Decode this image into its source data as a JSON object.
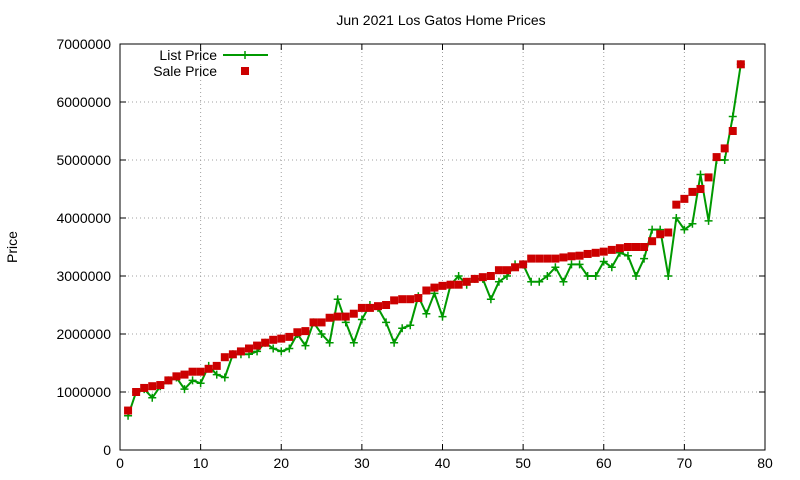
{
  "chart_data": {
    "type": "line",
    "title": "Jun 2021 Los Gatos Home Prices",
    "xlabel": "",
    "ylabel": "Price",
    "xlim": [
      0,
      80
    ],
    "ylim": [
      0,
      7000000
    ],
    "xticks": [
      "0",
      "10",
      "20",
      "30",
      "40",
      "50",
      "60",
      "70",
      "80"
    ],
    "yticks": [
      "0",
      "1000000",
      "2000000",
      "3000000",
      "4000000",
      "5000000",
      "6000000",
      "7000000"
    ],
    "grid": true,
    "legend_position": "top-left",
    "series": [
      {
        "name": "List Price",
        "style": "line-plus",
        "color": "#009900",
        "x": [
          1,
          2,
          3,
          4,
          5,
          6,
          7,
          8,
          9,
          10,
          11,
          12,
          13,
          14,
          15,
          16,
          17,
          18,
          19,
          20,
          21,
          22,
          23,
          24,
          25,
          26,
          27,
          28,
          29,
          30,
          31,
          32,
          33,
          34,
          35,
          36,
          37,
          38,
          39,
          40,
          41,
          42,
          43,
          44,
          45,
          46,
          47,
          48,
          49,
          50,
          51,
          52,
          53,
          54,
          55,
          56,
          57,
          58,
          59,
          60,
          61,
          62,
          63,
          64,
          65,
          66,
          67,
          68,
          69,
          70,
          71,
          72,
          73,
          74,
          75,
          76,
          77
        ],
        "y": [
          590000,
          1000000,
          1050000,
          900000,
          1100000,
          1200000,
          1250000,
          1050000,
          1200000,
          1150000,
          1450000,
          1300000,
          1250000,
          1650000,
          1650000,
          1650000,
          1700000,
          1850000,
          1750000,
          1700000,
          1750000,
          2000000,
          1800000,
          2200000,
          2000000,
          1850000,
          2600000,
          2200000,
          1850000,
          2250000,
          2500000,
          2450000,
          2200000,
          1850000,
          2100000,
          2150000,
          2650000,
          2350000,
          2700000,
          2300000,
          2850000,
          3000000,
          2850000,
          2950000,
          2950000,
          2600000,
          2900000,
          3000000,
          3200000,
          3200000,
          2900000,
          2900000,
          3000000,
          3150000,
          2900000,
          3200000,
          3200000,
          3000000,
          3000000,
          3250000,
          3150000,
          3400000,
          3350000,
          3000000,
          3300000,
          3800000,
          3800000,
          3000000,
          4000000,
          3800000,
          3900000,
          4750000,
          3950000,
          5000000,
          5000000,
          5750000,
          6650000
        ]
      },
      {
        "name": "Sale Price",
        "style": "square",
        "color": "#cc0000",
        "x": [
          1,
          2,
          3,
          4,
          5,
          6,
          7,
          8,
          9,
          10,
          11,
          12,
          13,
          14,
          15,
          16,
          17,
          18,
          19,
          20,
          21,
          22,
          23,
          24,
          25,
          26,
          27,
          28,
          29,
          30,
          31,
          32,
          33,
          34,
          35,
          36,
          37,
          38,
          39,
          40,
          41,
          42,
          43,
          44,
          45,
          46,
          47,
          48,
          49,
          50,
          51,
          52,
          53,
          54,
          55,
          56,
          57,
          58,
          59,
          60,
          61,
          62,
          63,
          64,
          65,
          66,
          67,
          68,
          69,
          70,
          71,
          72,
          73,
          74,
          75,
          76,
          77
        ],
        "y": [
          680000,
          1000000,
          1070000,
          1100000,
          1120000,
          1200000,
          1270000,
          1300000,
          1350000,
          1350000,
          1400000,
          1450000,
          1600000,
          1650000,
          1700000,
          1750000,
          1800000,
          1850000,
          1900000,
          1920000,
          1950000,
          2030000,
          2050000,
          2200000,
          2200000,
          2280000,
          2300000,
          2300000,
          2350000,
          2450000,
          2450000,
          2480000,
          2500000,
          2580000,
          2600000,
          2600000,
          2620000,
          2750000,
          2800000,
          2830000,
          2850000,
          2850000,
          2900000,
          2950000,
          2980000,
          3000000,
          3100000,
          3100000,
          3150000,
          3200000,
          3300000,
          3300000,
          3300000,
          3300000,
          3320000,
          3340000,
          3350000,
          3380000,
          3400000,
          3420000,
          3450000,
          3480000,
          3500000,
          3500000,
          3500000,
          3600000,
          3720000,
          3750000,
          4230000,
          4330000,
          4450000,
          4500000,
          4700000,
          5050000,
          5200000,
          5500000,
          6650000
        ]
      }
    ]
  }
}
